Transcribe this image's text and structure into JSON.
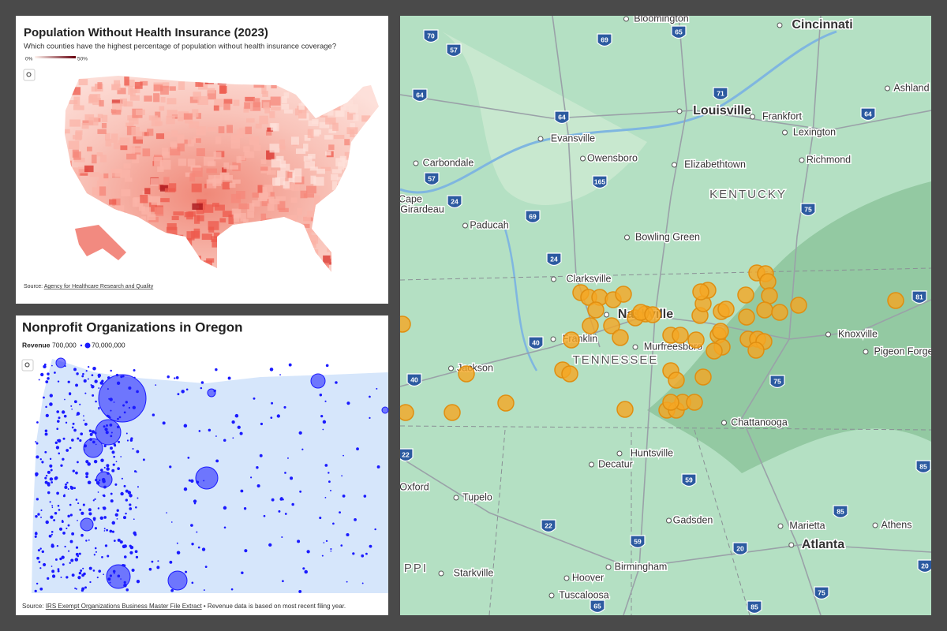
{
  "health": {
    "title": "Population Without Health Insurance (2023)",
    "subtitle": "Which counties have the highest percentage of population without health insurance coverage?",
    "legend_min": "0%",
    "legend_max": "50%",
    "source_prefix": "Source:",
    "source_link": "Agency for Healthcare Research and Quality"
  },
  "nonprofit": {
    "title": "Nonprofit Organizations in Oregon",
    "legend_title": "Revenue",
    "legend_min": "700,000",
    "legend_max": "70,000,000",
    "source_prefix": "Source:",
    "source_link": "IRS Exempt Organizations Business Master File Extract",
    "source_note": "• Revenue data is based on most recent filing year."
  },
  "map": {
    "places": [
      "Bloomington",
      "Cincinnati",
      "Louisville",
      "Frankfort",
      "Lexington",
      "Ashland",
      "Evansville",
      "Owensboro",
      "Elizabethtown",
      "Richmond",
      "Carbondale",
      "Cape",
      "Girardeau",
      "Paducah",
      "Bowling Green",
      "Clarksville",
      "Nashville",
      "Franklin",
      "Murfreesboro",
      "Jackson",
      "Knoxville",
      "Pigeon Forge",
      "Chattanooga",
      "Huntsville",
      "Decatur",
      "Tupelo",
      "Oxford",
      "Gadsden",
      "Marietta",
      "Athens",
      "Atlanta",
      "Birmingham",
      "Hoover",
      "Starkville",
      "Tuscaloosa"
    ],
    "states": [
      "KENTUCKY",
      "TENNESSEE",
      "PPI"
    ],
    "shields": [
      "70",
      "57",
      "69",
      "65",
      "71",
      "64",
      "64",
      "64",
      "57",
      "24",
      "165",
      "69",
      "75",
      "24",
      "40",
      "40",
      "81",
      "75",
      "22",
      "59",
      "85",
      "22",
      "59",
      "20",
      "85",
      "75",
      "65",
      "85",
      "20"
    ]
  }
}
